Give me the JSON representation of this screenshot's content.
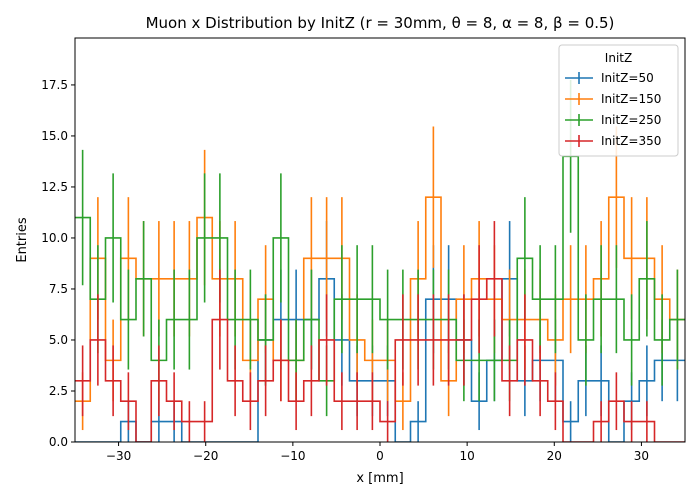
{
  "chart_data": {
    "type": "histogram",
    "title": "Muon x Distribution by InitZ (r = 30mm, θ = 8, α = 8, β = 0.5)",
    "xlabel": "x [mm]",
    "ylabel": "Entries",
    "xlim": [
      -35,
      35
    ],
    "ylim": [
      0,
      19.8
    ],
    "bin_width": 1.75,
    "bin_edges_start": -35,
    "xticks": [
      -30,
      -20,
      -10,
      0,
      10,
      20,
      30
    ],
    "xtick_labels": [
      "−30",
      "−20",
      "−10",
      "0",
      "10",
      "20",
      "30"
    ],
    "yticks": [
      0,
      2.5,
      5,
      7.5,
      10,
      12.5,
      15,
      17.5
    ],
    "ytick_labels": [
      "0.0",
      "2.5",
      "5.0",
      "7.5",
      "10.0",
      "12.5",
      "15.0",
      "17.5"
    ],
    "error_bars": "sqrt(N)",
    "legend": {
      "title": "InitZ",
      "placement": "top-right"
    },
    "series": [
      {
        "name": "InitZ=50",
        "color": "#1f77b4",
        "values": [
          0,
          0,
          0,
          1,
          0,
          1,
          1,
          0,
          0,
          0,
          0,
          0,
          5,
          6,
          6,
          6,
          8,
          5,
          3,
          3,
          3,
          0,
          1,
          7,
          7,
          5,
          2,
          4,
          8,
          3,
          4,
          4,
          1,
          3,
          3,
          0,
          2,
          3,
          4,
          4
        ]
      },
      {
        "name": "InitZ=150",
        "color": "#ff7f0e",
        "values": [
          2,
          9,
          4,
          9,
          8,
          8,
          8,
          8,
          11,
          8,
          8,
          4,
          7,
          4,
          4,
          9,
          9,
          9,
          5,
          4,
          4,
          2,
          8,
          12,
          3,
          7,
          8,
          7,
          6,
          6,
          6,
          5,
          7,
          7,
          8,
          12,
          9,
          9,
          7,
          6
        ]
      },
      {
        "name": "InitZ=250",
        "color": "#2ca02c",
        "values": [
          11,
          7,
          10,
          6,
          8,
          4,
          6,
          6,
          10,
          10,
          6,
          6,
          5,
          10,
          4,
          6,
          3,
          7,
          7,
          7,
          6,
          6,
          6,
          6,
          6,
          4,
          4,
          4,
          4,
          9,
          7,
          7,
          14,
          5,
          7,
          7,
          5,
          8,
          5,
          6
        ]
      },
      {
        "name": "InitZ=350",
        "color": "#d62728",
        "values": [
          3,
          5,
          3,
          2,
          0,
          3,
          2,
          1,
          1,
          6,
          3,
          2,
          3,
          4,
          2,
          3,
          5,
          2,
          2,
          2,
          1,
          5,
          5,
          5,
          5,
          5,
          7,
          8,
          3,
          5,
          3,
          2,
          0,
          0,
          1,
          2,
          1,
          1,
          0,
          0
        ]
      }
    ]
  }
}
